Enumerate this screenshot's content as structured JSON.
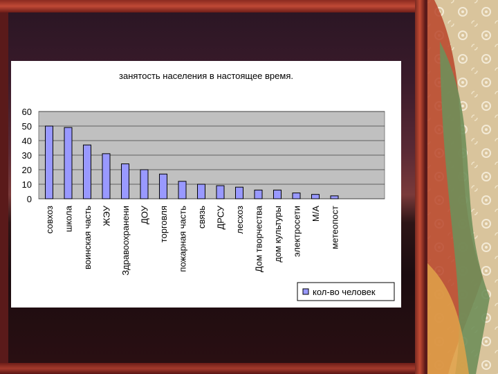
{
  "chart_data": {
    "type": "bar",
    "title": "занятость населения в настоящее время.",
    "categories": [
      "совхоз",
      "школа",
      "воинская часть",
      "ЖЭУ",
      "Здравоохранени",
      "ДОУ",
      "торговля",
      "пожарная часть",
      "связь",
      "ДРСУ",
      "лесхоз",
      "Дом творчества",
      "дом культуры",
      "электросети",
      "М/А",
      "метеопост"
    ],
    "series": [
      {
        "name": "кол-во человек",
        "values": [
          50,
          49,
          37,
          31,
          24,
          20,
          17,
          12,
          10,
          9,
          8,
          6,
          6,
          4,
          3,
          2
        ]
      }
    ],
    "y_ticks": [
      "0",
      "10",
      "20",
      "30",
      "40",
      "50",
      "60"
    ],
    "ylim": [
      0,
      60
    ],
    "grid": true,
    "legend": "bottom-right",
    "colors": {
      "bar": "#9999ff",
      "plot_bg": "#c0c0c0",
      "gridline": "#000000"
    }
  }
}
